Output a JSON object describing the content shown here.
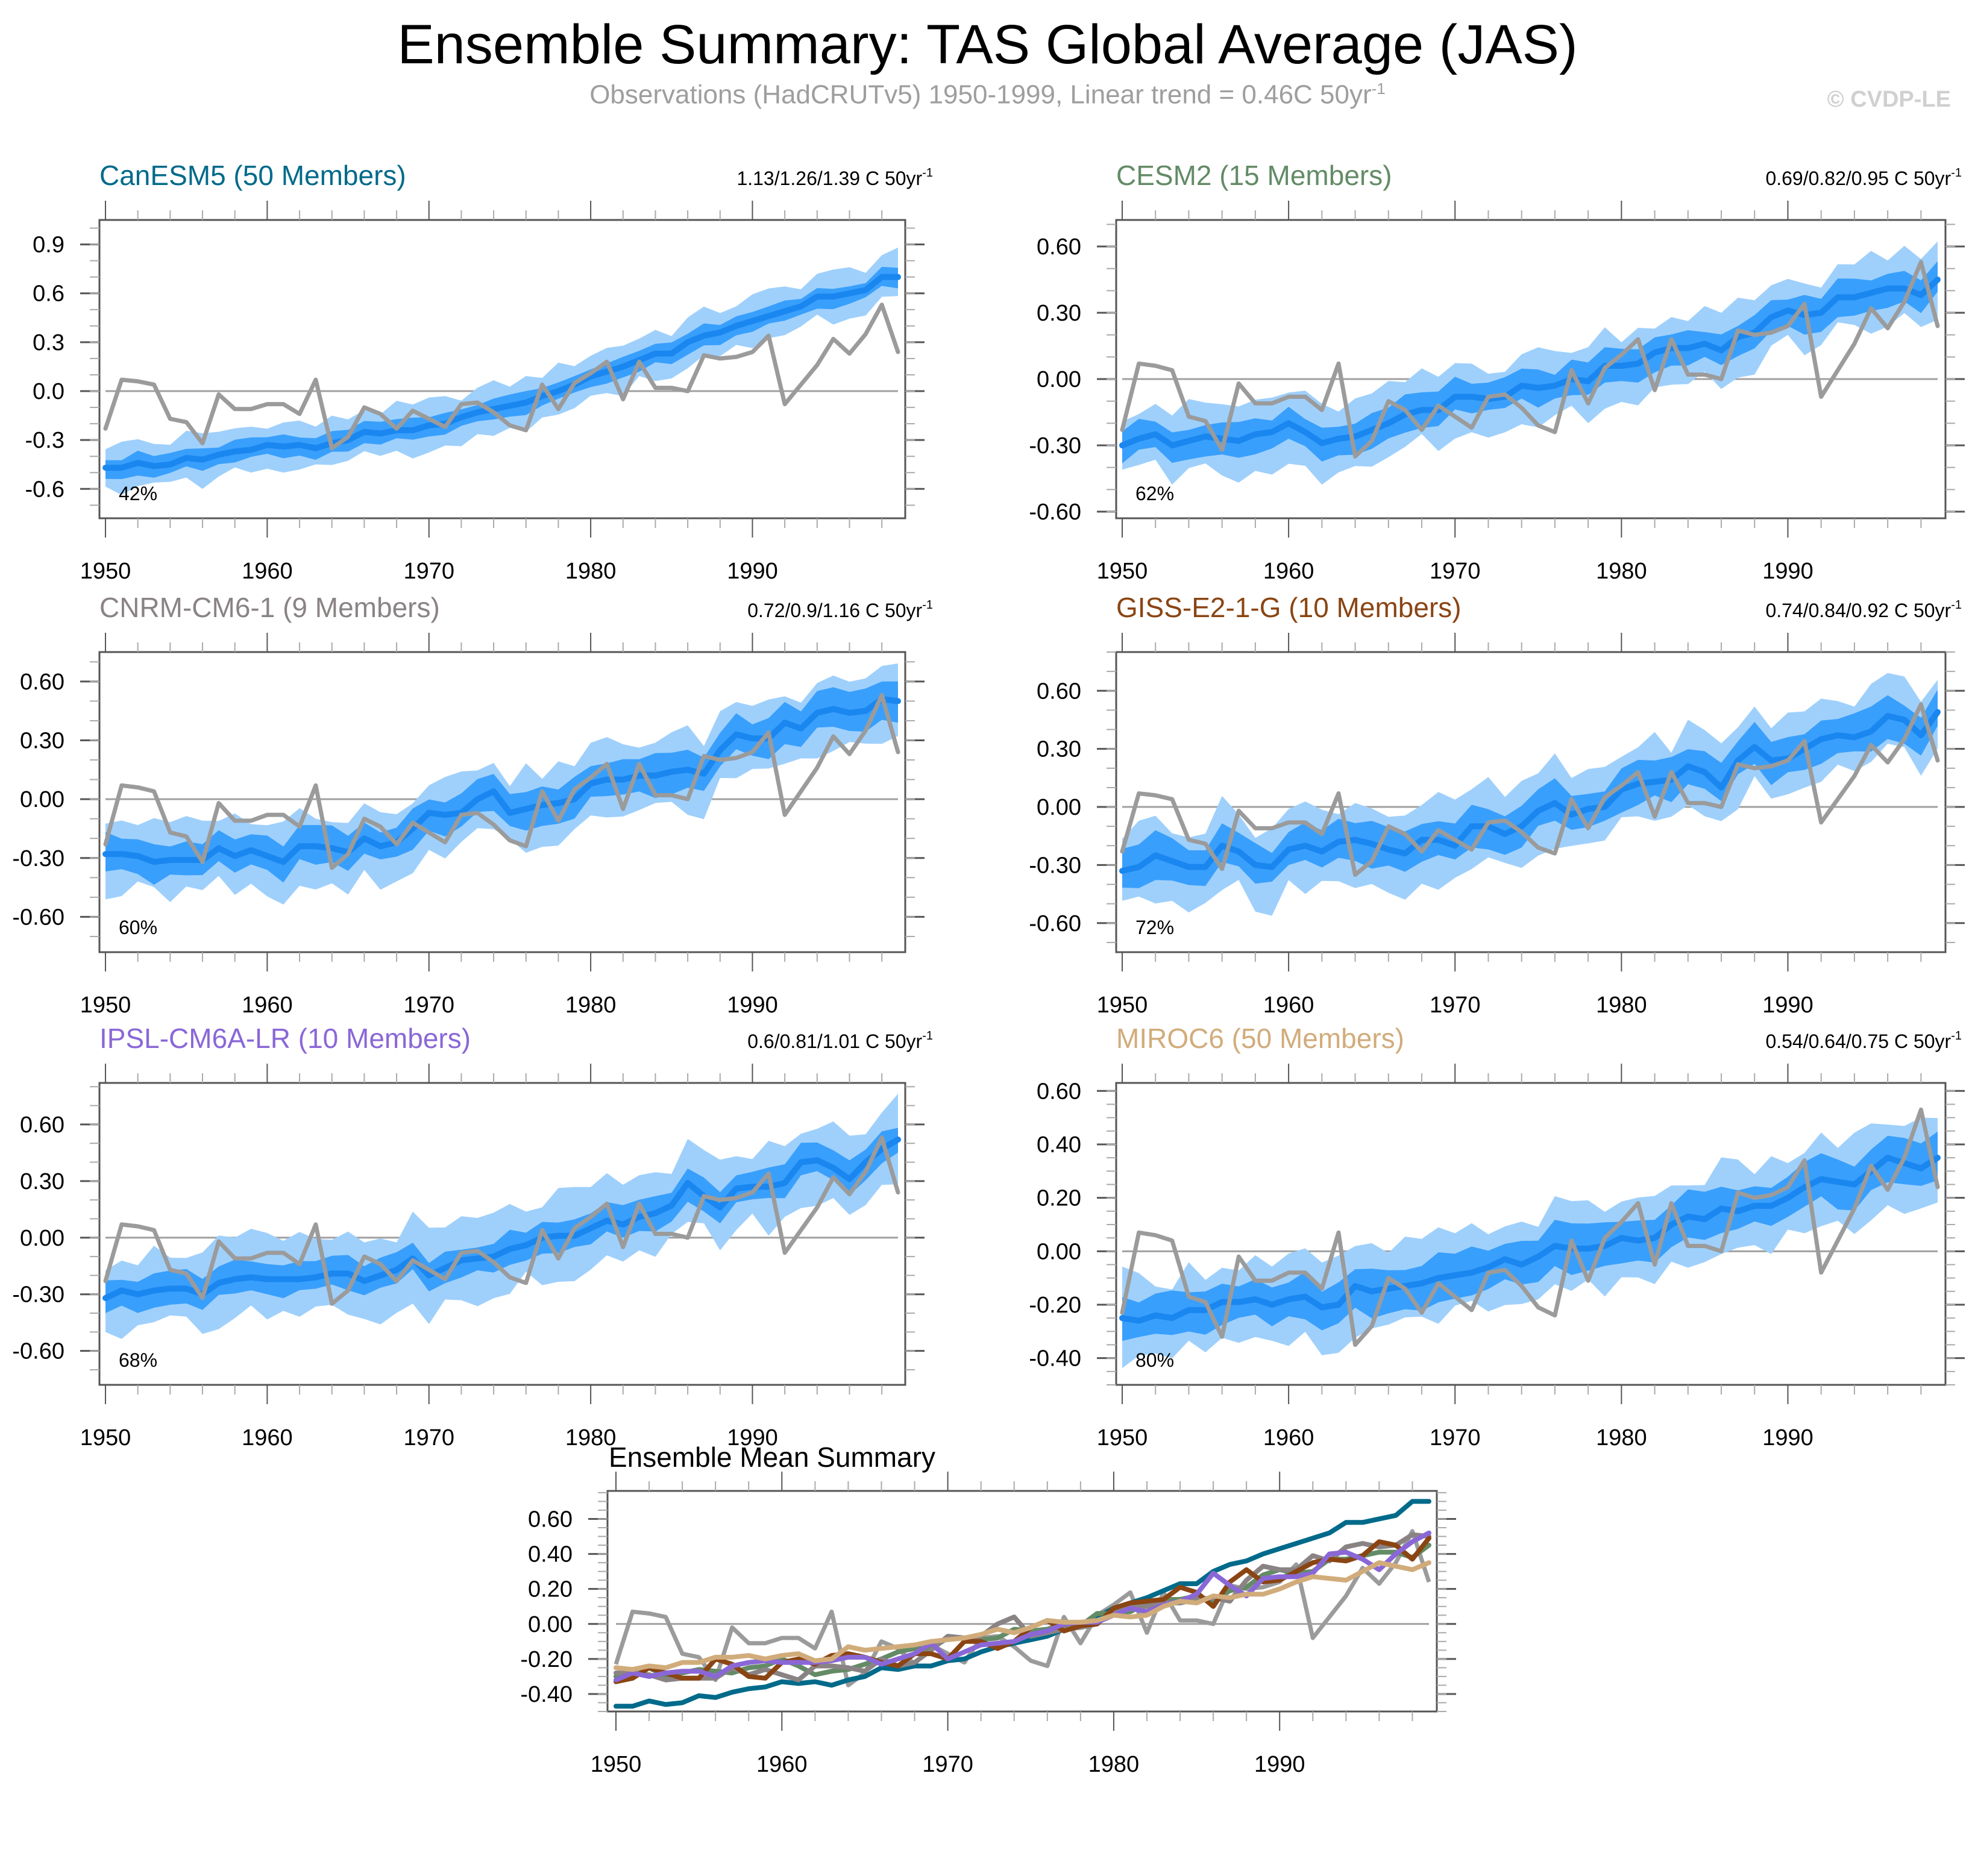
{
  "header": {
    "title": "Ensemble Summary: TAS Global Average (JAS)",
    "subtitle": "Observations (HadCRUTv5) 1950-1999, Linear trend = 0.46C 50yr",
    "subtitle_sup": "-1",
    "copyright": "© CVDP-LE"
  },
  "colors": {
    "obs": "#9b9b9b",
    "mean": "#1a87f0",
    "band_inner": "#399ffc",
    "band_outer": "#9fd0fc",
    "frame": "#555555"
  },
  "chart_data": [
    {
      "type": "area",
      "title": "CanESM5 (50 Members)",
      "title_color": "#006a8a",
      "trend_text": "1.13/1.26/1.39 C 50yr",
      "trend_sup": "-1",
      "percent_label": "42%",
      "ylim": [
        -0.78,
        1.05
      ],
      "yticks": [
        -0.6,
        -0.3,
        0.0,
        0.3,
        0.6,
        0.9
      ],
      "ytick_labels": [
        "-0.6",
        "-0.3",
        "0.0",
        "0.3",
        "0.6",
        "0.9"
      ],
      "yminor": 0.1,
      "xlim": [
        1950,
        1999
      ],
      "xticks": [
        1950,
        1960,
        1970,
        1980,
        1990
      ],
      "ensemble_mean": [
        -0.47,
        -0.47,
        -0.44,
        -0.46,
        -0.45,
        -0.41,
        -0.42,
        -0.39,
        -0.37,
        -0.36,
        -0.33,
        -0.34,
        -0.33,
        -0.35,
        -0.32,
        -0.3,
        -0.25,
        -0.26,
        -0.24,
        -0.24,
        -0.21,
        -0.2,
        -0.16,
        -0.13,
        -0.11,
        -0.09,
        -0.07,
        -0.03,
        0.0,
        0.04,
        0.09,
        0.12,
        0.15,
        0.19,
        0.23,
        0.23,
        0.3,
        0.34,
        0.36,
        0.4,
        0.43,
        0.46,
        0.49,
        0.52,
        0.58,
        0.58,
        0.6,
        0.62,
        0.7,
        0.7
      ],
      "inner_spread": 0.06,
      "outer_spread": 0.14
    },
    {
      "type": "area",
      "title": "CESM2 (15 Members)",
      "title_color": "#638b66",
      "trend_text": "0.69/0.82/0.95 C 50yr",
      "trend_sup": "-1",
      "percent_label": "62%",
      "ylim": [
        -0.63,
        0.72
      ],
      "yticks": [
        -0.6,
        -0.3,
        0.0,
        0.3,
        0.6
      ],
      "ytick_labels": [
        "-0.60",
        "-0.30",
        "0.00",
        "0.30",
        "0.60"
      ],
      "yminor": 0.1,
      "xlim": [
        1950,
        1999
      ],
      "xticks": [
        1950,
        1960,
        1970,
        1980,
        1990
      ],
      "ensemble_mean": [
        -0.3,
        -0.27,
        -0.25,
        -0.3,
        -0.28,
        -0.26,
        -0.27,
        -0.28,
        -0.25,
        -0.24,
        -0.2,
        -0.24,
        -0.29,
        -0.27,
        -0.26,
        -0.23,
        -0.2,
        -0.16,
        -0.14,
        -0.14,
        -0.08,
        -0.08,
        -0.09,
        -0.08,
        -0.03,
        -0.04,
        -0.03,
        0.0,
        -0.01,
        0.06,
        0.06,
        0.07,
        0.12,
        0.14,
        0.14,
        0.16,
        0.13,
        0.19,
        0.21,
        0.28,
        0.31,
        0.29,
        0.3,
        0.37,
        0.37,
        0.39,
        0.41,
        0.41,
        0.38,
        0.45
      ],
      "inner_spread": 0.07,
      "outer_spread": 0.15
    },
    {
      "type": "area",
      "title": "CNRM-CM6-1 (9 Members)",
      "title_color": "#8a8384",
      "trend_text": "0.72/0.9/1.16 C 50yr",
      "trend_sup": "-1",
      "percent_label": "60%",
      "ylim": [
        -0.78,
        0.75
      ],
      "yticks": [
        -0.6,
        -0.3,
        0.0,
        0.3,
        0.6
      ],
      "ytick_labels": [
        "-0.60",
        "-0.30",
        "0.00",
        "0.30",
        "0.60"
      ],
      "yminor": 0.1,
      "xlim": [
        1950,
        1999
      ],
      "xticks": [
        1950,
        1960,
        1970,
        1980,
        1990
      ],
      "ensemble_mean": [
        -0.28,
        -0.28,
        -0.29,
        -0.32,
        -0.31,
        -0.31,
        -0.31,
        -0.25,
        -0.29,
        -0.26,
        -0.29,
        -0.32,
        -0.24,
        -0.24,
        -0.25,
        -0.27,
        -0.2,
        -0.24,
        -0.22,
        -0.15,
        -0.07,
        -0.08,
        -0.07,
        0.0,
        0.04,
        -0.07,
        -0.05,
        -0.03,
        -0.02,
        0.0,
        0.08,
        0.1,
        0.1,
        0.12,
        0.12,
        0.14,
        0.15,
        0.13,
        0.25,
        0.33,
        0.31,
        0.31,
        0.39,
        0.36,
        0.44,
        0.46,
        0.44,
        0.45,
        0.51,
        0.5
      ],
      "inner_spread": 0.09,
      "outer_spread": 0.18
    },
    {
      "type": "area",
      "title": "GISS-E2-1-G (10 Members)",
      "title_color": "#8a4513",
      "trend_text": "0.74/0.84/0.92 C 50yr",
      "trend_sup": "-1",
      "percent_label": "72%",
      "ylim": [
        -0.75,
        0.8
      ],
      "yticks": [
        -0.6,
        -0.3,
        0.0,
        0.3,
        0.6
      ],
      "ytick_labels": [
        "-0.60",
        "-0.30",
        "0.00",
        "0.30",
        "0.60"
      ],
      "yminor": 0.1,
      "xlim": [
        1950,
        1999
      ],
      "xticks": [
        1950,
        1960,
        1970,
        1980,
        1990
      ],
      "ensemble_mean": [
        -0.33,
        -0.31,
        -0.25,
        -0.28,
        -0.31,
        -0.31,
        -0.2,
        -0.23,
        -0.3,
        -0.31,
        -0.22,
        -0.2,
        -0.23,
        -0.18,
        -0.17,
        -0.19,
        -0.22,
        -0.24,
        -0.17,
        -0.17,
        -0.2,
        -0.1,
        -0.1,
        -0.14,
        -0.1,
        -0.02,
        0.02,
        -0.04,
        -0.01,
        0.0,
        0.09,
        0.12,
        0.13,
        0.14,
        0.21,
        0.18,
        0.1,
        0.24,
        0.31,
        0.24,
        0.25,
        0.3,
        0.35,
        0.37,
        0.36,
        0.39,
        0.47,
        0.45,
        0.37,
        0.49
      ],
      "inner_spread": 0.1,
      "outer_spread": 0.2
    },
    {
      "type": "area",
      "title": "IPSL-CM6A-LR (10 Members)",
      "title_color": "#8a67d7",
      "trend_text": "0.6/0.81/1.01 C 50yr",
      "trend_sup": "-1",
      "percent_label": "68%",
      "ylim": [
        -0.78,
        0.82
      ],
      "yticks": [
        -0.6,
        -0.3,
        0.0,
        0.3,
        0.6
      ],
      "ytick_labels": [
        "-0.60",
        "-0.30",
        "0.00",
        "0.30",
        "0.60"
      ],
      "yminor": 0.1,
      "xlim": [
        1950,
        1999
      ],
      "xticks": [
        1950,
        1960,
        1970,
        1980,
        1990
      ],
      "ensemble_mean": [
        -0.32,
        -0.28,
        -0.3,
        -0.28,
        -0.27,
        -0.27,
        -0.3,
        -0.24,
        -0.22,
        -0.21,
        -0.22,
        -0.22,
        -0.22,
        -0.21,
        -0.19,
        -0.19,
        -0.23,
        -0.2,
        -0.17,
        -0.11,
        -0.2,
        -0.16,
        -0.12,
        -0.11,
        -0.1,
        -0.06,
        -0.04,
        0.0,
        0.01,
        0.01,
        0.05,
        0.09,
        0.07,
        0.11,
        0.13,
        0.17,
        0.29,
        0.22,
        0.16,
        0.26,
        0.27,
        0.27,
        0.29,
        0.4,
        0.41,
        0.37,
        0.31,
        0.4,
        0.47,
        0.52
      ],
      "inner_spread": 0.08,
      "outer_spread": 0.2
    },
    {
      "type": "area",
      "title": "MIROC6 (50 Members)",
      "title_color": "#d1ac7b",
      "trend_text": "0.54/0.64/0.75 C 50yr",
      "trend_sup": "-1",
      "percent_label": "80%",
      "ylim": [
        -0.5,
        0.63
      ],
      "yticks": [
        -0.4,
        -0.2,
        0.0,
        0.2,
        0.4,
        0.6
      ],
      "ytick_labels": [
        "-0.40",
        "-0.20",
        "0.00",
        "0.20",
        "0.40",
        "0.60"
      ],
      "yminor": 0.05,
      "xlim": [
        1950,
        1999
      ],
      "xticks": [
        1950,
        1960,
        1970,
        1980,
        1990
      ],
      "ensemble_mean": [
        -0.25,
        -0.26,
        -0.24,
        -0.25,
        -0.22,
        -0.22,
        -0.19,
        -0.19,
        -0.18,
        -0.2,
        -0.18,
        -0.17,
        -0.21,
        -0.2,
        -0.13,
        -0.15,
        -0.14,
        -0.13,
        -0.12,
        -0.1,
        -0.09,
        -0.08,
        -0.06,
        -0.03,
        -0.05,
        -0.02,
        0.02,
        0.01,
        0.01,
        0.02,
        0.05,
        0.04,
        0.05,
        0.1,
        0.13,
        0.12,
        0.16,
        0.15,
        0.17,
        0.17,
        0.2,
        0.24,
        0.27,
        0.26,
        0.25,
        0.3,
        0.35,
        0.33,
        0.31,
        0.35
      ],
      "inner_spread": 0.08,
      "outer_spread": 0.15
    },
    {
      "type": "line",
      "title": "Ensemble Mean Summary",
      "title_color": "#000000",
      "ylim": [
        -0.5,
        0.76
      ],
      "yticks": [
        -0.4,
        -0.2,
        0.0,
        0.2,
        0.4,
        0.6
      ],
      "ytick_labels": [
        "-0.40",
        "-0.20",
        "0.00",
        "0.20",
        "0.40",
        "0.60"
      ],
      "yminor": 0.05,
      "xlim": [
        1950,
        1999
      ],
      "xticks": [
        1950,
        1960,
        1970,
        1980,
        1990
      ],
      "series_from_panels": true
    }
  ],
  "observations": {
    "name": "HadCRUTv5",
    "values": [
      -0.23,
      0.07,
      0.06,
      0.04,
      -0.17,
      -0.19,
      -0.32,
      -0.02,
      -0.11,
      -0.11,
      -0.08,
      -0.08,
      -0.14,
      0.07,
      -0.35,
      -0.28,
      -0.1,
      -0.14,
      -0.23,
      -0.12,
      -0.17,
      -0.22,
      -0.08,
      -0.07,
      -0.13,
      -0.21,
      -0.24,
      0.04,
      -0.11,
      0.05,
      0.11,
      0.18,
      -0.05,
      0.18,
      0.02,
      0.02,
      0.0,
      0.22,
      0.2,
      0.21,
      0.24,
      0.34,
      -0.08,
      0.04,
      0.16,
      0.32,
      0.23,
      0.35,
      0.53,
      0.24
    ]
  }
}
